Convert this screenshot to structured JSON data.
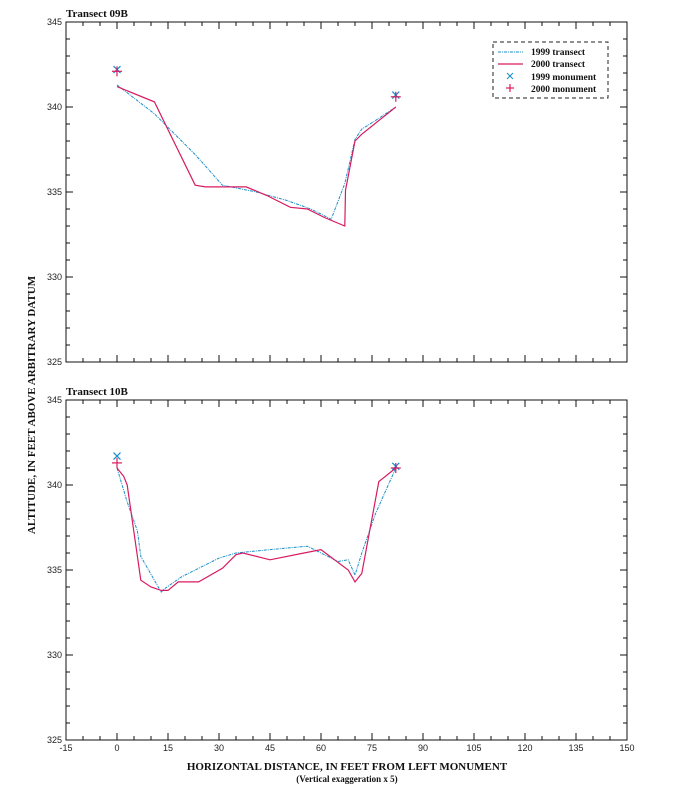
{
  "chart_data": [
    {
      "type": "line",
      "title": "Transect 09B",
      "xlabel": "HORIZONTAL DISTANCE, IN FEET FROM LEFT MONUMENT",
      "ylabel": "ALTITUDE, IN FEET ABOVE ARBITRARY DATUM",
      "xlim": [
        -15,
        150
      ],
      "ylim": [
        325,
        345
      ],
      "x_ticks": [
        -15,
        0,
        15,
        30,
        45,
        60,
        75,
        90,
        105,
        120,
        135,
        150
      ],
      "y_ticks": [
        325,
        330,
        335,
        340,
        345
      ],
      "grid": false,
      "legend_position": "upper right",
      "series": [
        {
          "name": "1999 transect",
          "style": "dash-dot",
          "color": "#1a8fc9",
          "x": [
            0,
            11,
            23,
            31,
            41,
            50,
            57,
            63,
            67,
            70,
            72,
            76,
            82
          ],
          "y": [
            341.3,
            339.6,
            337.2,
            335.4,
            335.0,
            334.5,
            334.0,
            333.4,
            335.5,
            338.1,
            338.7,
            339.2,
            340.0
          ]
        },
        {
          "name": "2000 transect",
          "style": "solid",
          "color": "#d81b60",
          "x": [
            0,
            11,
            23,
            26,
            34,
            38,
            44,
            51,
            56,
            61,
            67,
            67.2,
            70,
            72,
            82
          ],
          "y": [
            341.2,
            340.3,
            335.4,
            335.3,
            335.3,
            335.3,
            334.8,
            334.1,
            334.0,
            333.5,
            333.0,
            335.1,
            338.0,
            338.4,
            340.0
          ]
        },
        {
          "name": "1999 monument",
          "type": "marker",
          "marker": "x",
          "color": "#1a8fc9",
          "x": [
            0,
            82
          ],
          "y": [
            342.2,
            340.7
          ]
        },
        {
          "name": "2000 monument",
          "type": "marker",
          "marker": "+",
          "color": "#d81b60",
          "x": [
            0,
            82
          ],
          "y": [
            342.1,
            340.6
          ]
        }
      ]
    },
    {
      "type": "line",
      "title": "Transect 10B",
      "xlabel": "HORIZONTAL DISTANCE, IN FEET FROM LEFT MONUMENT",
      "ylabel": "ALTITUDE, IN FEET ABOVE ARBITRARY DATUM",
      "xlim": [
        -15,
        150
      ],
      "ylim": [
        325,
        345
      ],
      "x_ticks": [
        -15,
        0,
        15,
        30,
        45,
        60,
        75,
        90,
        105,
        120,
        135,
        150
      ],
      "y_ticks": [
        325,
        330,
        335,
        340,
        345
      ],
      "grid": false,
      "series": [
        {
          "name": "1999 transect",
          "style": "dash-dot",
          "color": "#1a8fc9",
          "x": [
            0,
            3,
            6,
            7,
            13,
            14,
            19,
            30,
            35,
            45,
            56,
            65,
            68,
            70,
            72,
            76,
            82
          ],
          "y": [
            341.0,
            339.0,
            337.3,
            335.8,
            333.7,
            333.9,
            334.6,
            335.7,
            336.0,
            336.2,
            336.4,
            335.5,
            335.6,
            334.7,
            336.0,
            338.3,
            341.0
          ]
        },
        {
          "name": "2000 transect",
          "style": "solid",
          "color": "#d81b60",
          "x": [
            0,
            2,
            3,
            7,
            10,
            13,
            15,
            18,
            24,
            31,
            35,
            37,
            45,
            55,
            60,
            68,
            70,
            72,
            77,
            82
          ],
          "y": [
            341.0,
            340.5,
            340.0,
            334.4,
            334.0,
            333.8,
            333.8,
            334.3,
            334.3,
            335.1,
            335.9,
            336.0,
            335.6,
            336.0,
            336.2,
            335.0,
            334.3,
            334.8,
            340.2,
            341.0
          ]
        },
        {
          "name": "1999 monument",
          "type": "marker",
          "marker": "x",
          "color": "#1a8fc9",
          "x": [
            0,
            82
          ],
          "y": [
            341.7,
            341.1
          ]
        },
        {
          "name": "2000 monument",
          "type": "marker",
          "marker": "+",
          "color": "#d81b60",
          "x": [
            0,
            82
          ],
          "y": [
            341.3,
            341.0
          ]
        }
      ]
    }
  ],
  "page": {
    "top_title": "Transect 09B",
    "bottom_title": "Transect 10B",
    "ylabel": "ALTITUDE, IN FEET ABOVE ARBITRARY DATUM",
    "xlabel": "HORIZONTAL DISTANCE, IN FEET FROM LEFT MONUMENT",
    "subtitle": "(Vertical exaggeration x 5)",
    "legend": [
      {
        "label": "1999 transect",
        "symbol": "dash-dot-line",
        "color": "#1a8fc9"
      },
      {
        "label": "2000 transect",
        "symbol": "solid-line",
        "color": "#d81b60"
      },
      {
        "label": "1999 monument",
        "symbol": "x",
        "color": "#1a8fc9"
      },
      {
        "label": "2000 monument",
        "symbol": "+",
        "color": "#d81b60"
      }
    ]
  }
}
